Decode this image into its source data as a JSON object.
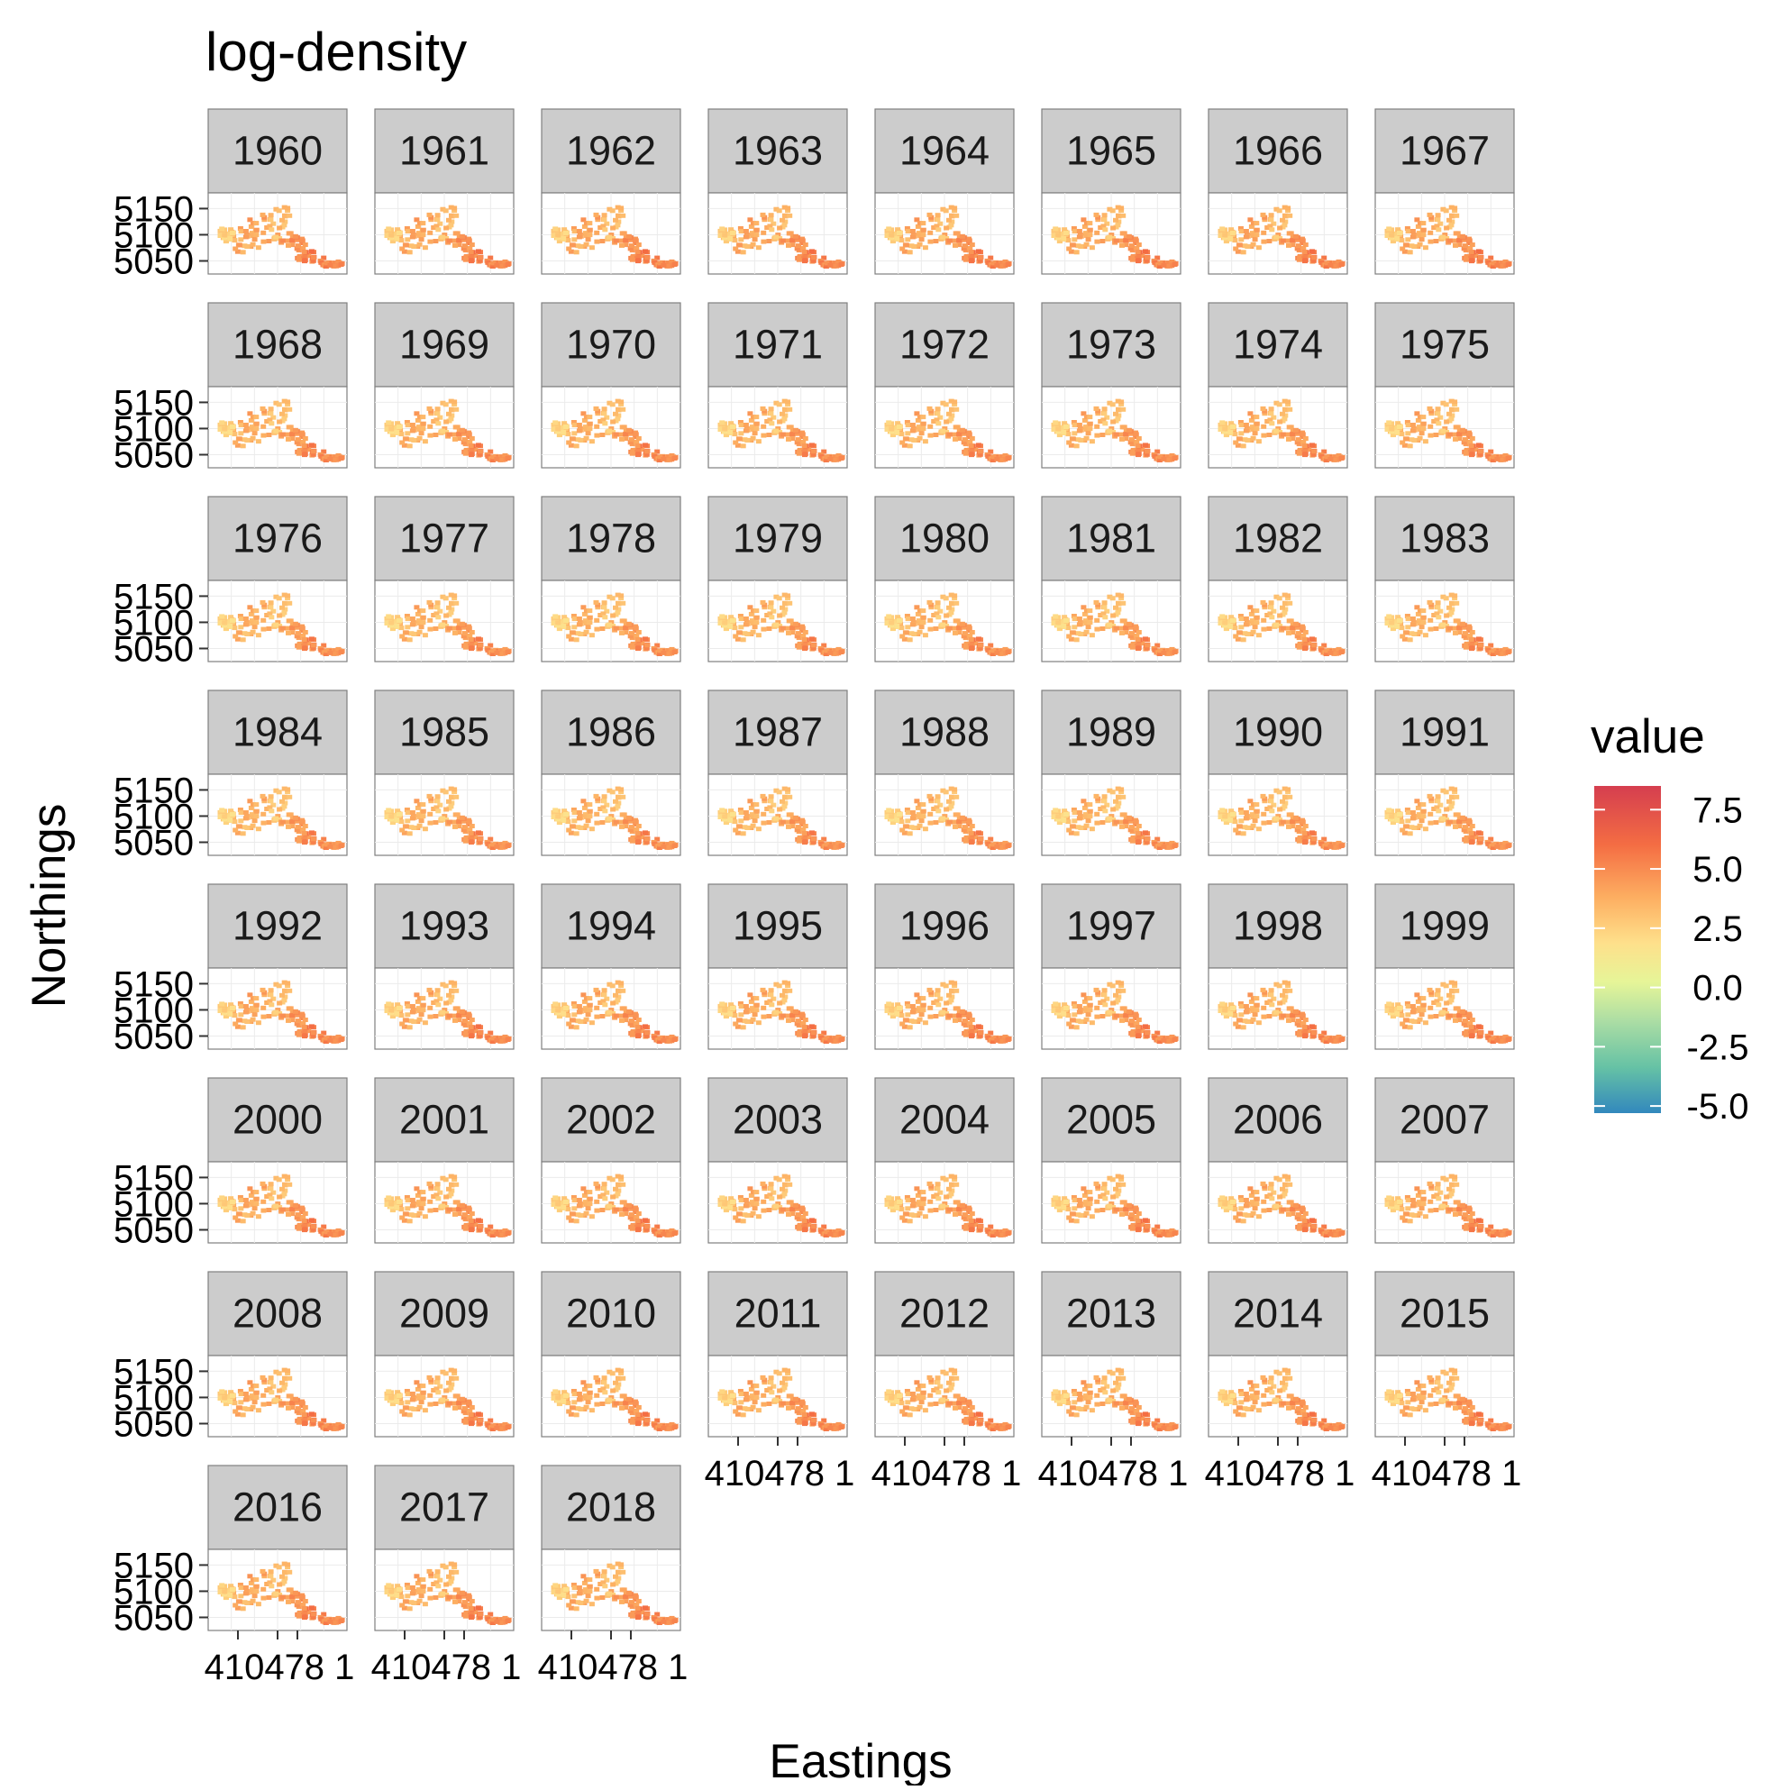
{
  "chart_data": {
    "type": "heatmap",
    "title": "log-density",
    "xlabel": "Eastings",
    "ylabel": "Northings",
    "facet_variable": "year",
    "facets": [
      "1960",
      "1961",
      "1962",
      "1963",
      "1964",
      "1965",
      "1966",
      "1967",
      "1968",
      "1969",
      "1970",
      "1971",
      "1972",
      "1973",
      "1974",
      "1975",
      "1976",
      "1977",
      "1978",
      "1979",
      "1980",
      "1981",
      "1982",
      "1983",
      "1984",
      "1985",
      "1986",
      "1987",
      "1988",
      "1989",
      "1990",
      "1991",
      "1992",
      "1993",
      "1994",
      "1995",
      "1996",
      "1997",
      "1998",
      "1999",
      "2000",
      "2001",
      "2002",
      "2003",
      "2004",
      "2005",
      "2006",
      "2007",
      "2008",
      "2009",
      "2010",
      "2011",
      "2012",
      "2013",
      "2014",
      "2015",
      "2016",
      "2017",
      "2018"
    ],
    "facet_layout": {
      "ncol": 8,
      "nrow": 8
    },
    "y_ticks": [
      "5150",
      "5100",
      "5050"
    ],
    "y_tick_values": [
      5150,
      5100,
      5050
    ],
    "ylim": [
      5025,
      5180
    ],
    "x_tick_labels_overlapping": "410478 1",
    "x_tick_positions_approx": [
      410,
      450,
      470
    ],
    "xlim": [
      380,
      520
    ],
    "grid": true,
    "legend": {
      "title": "value",
      "position": "right",
      "scale": "continuous",
      "labels": [
        "7.5",
        "5.0",
        "2.5",
        "0.0",
        "-2.5",
        "-5.0"
      ],
      "label_values": [
        7.5,
        5.0,
        2.5,
        0.0,
        -2.5,
        -5.0
      ],
      "range": [
        -5.3,
        8.5
      ],
      "colors": [
        "#3288bd",
        "#66c2a5",
        "#abdda4",
        "#e6f598",
        "#fee08b",
        "#fdae61",
        "#f46d43",
        "#d53e4f"
      ]
    },
    "approx_value_by_year": [
      4.5,
      4.5,
      4.5,
      4.5,
      4.5,
      4.5,
      4.5,
      4.5,
      4.3,
      4.3,
      4.3,
      4.3,
      4.3,
      4.3,
      4.3,
      4.3,
      4.2,
      4.2,
      4.2,
      4.2,
      4.2,
      4.2,
      4.2,
      4.2,
      4.2,
      4.2,
      4.2,
      4.2,
      4.2,
      4.2,
      4.2,
      4.2,
      4.4,
      4.4,
      4.4,
      4.4,
      4.4,
      4.4,
      4.4,
      4.4,
      4.4,
      4.4,
      4.4,
      4.4,
      4.4,
      4.4,
      4.4,
      4.4,
      4.4,
      4.4,
      4.4,
      4.4,
      4.4,
      4.4,
      4.4,
      4.4,
      4.4,
      4.4,
      4.4
    ]
  }
}
